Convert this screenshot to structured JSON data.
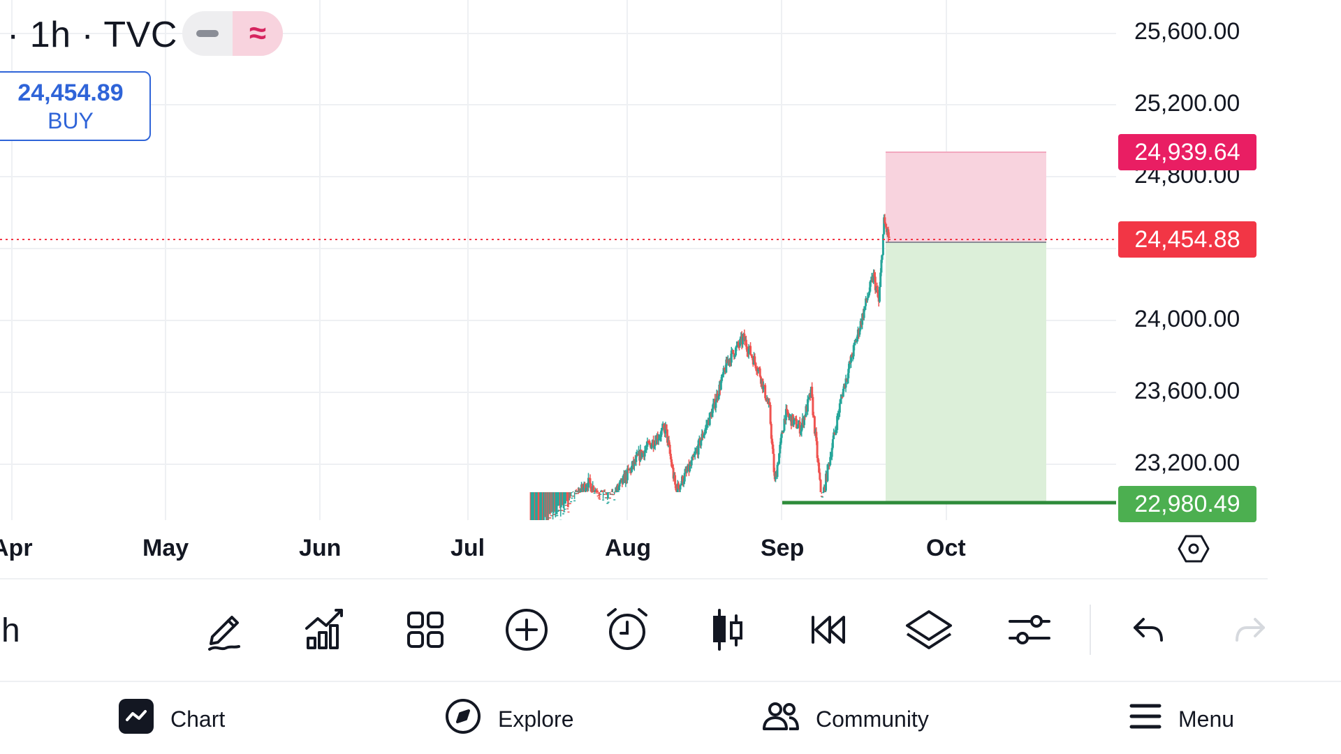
{
  "header": {
    "title": "· 1h · TVC",
    "buy_price": "24,454.89",
    "buy_label": "BUY"
  },
  "price_axis": {
    "labels": [
      "25,600.00",
      "25,200.00",
      "24,800.00",
      "24,000.00",
      "23,600.00",
      "23,200.00"
    ],
    "target_tag": "24,939.64",
    "current_tag": "24,454.88",
    "stop_tag": "22,980.49"
  },
  "time_axis": {
    "labels": [
      "Apr",
      "May",
      "Jun",
      "Jul",
      "Aug",
      "Sep",
      "Oct"
    ]
  },
  "toolbar": {
    "left_text": "h",
    "tools": [
      "pencil-icon",
      "indicators-icon",
      "grid-icon",
      "plus-circle-icon",
      "alarm-icon",
      "candles-icon",
      "replay-icon",
      "layers-icon",
      "sliders-icon",
      "undo-icon",
      "redo-icon"
    ]
  },
  "nav": {
    "chart": "Chart",
    "explore": "Explore",
    "community": "Community",
    "menu": "Menu"
  },
  "colors": {
    "up": "#26a69a",
    "down": "#ef5350",
    "target_tag": "#e91e63",
    "current_tag": "#f23645",
    "stop_tag": "#4caf50",
    "accent": "#2f64d8"
  },
  "chart_data": {
    "type": "candlestick",
    "interval": "1h",
    "x_start": "2025-07-13",
    "x_end": "2025-09-20",
    "ylim": [
      22750,
      25700
    ],
    "trajectory": [
      [
        "2025-07-13",
        22800
      ],
      [
        "2025-07-20",
        22950
      ],
      [
        "2025-07-24",
        23100
      ],
      [
        "2025-07-28",
        22980
      ],
      [
        "2025-08-03",
        23250
      ],
      [
        "2025-08-08",
        23400
      ],
      [
        "2025-08-10",
        23050
      ],
      [
        "2025-08-13",
        23200
      ],
      [
        "2025-08-17",
        23500
      ],
      [
        "2025-08-20",
        23780
      ],
      [
        "2025-08-23",
        23900
      ],
      [
        "2025-08-26",
        23720
      ],
      [
        "2025-08-28",
        23500
      ],
      [
        "2025-08-29",
        23100
      ],
      [
        "2025-08-31",
        23480
      ],
      [
        "2025-09-03",
        23400
      ],
      [
        "2025-09-05",
        23600
      ],
      [
        "2025-09-06",
        23300
      ],
      [
        "2025-09-07",
        22980
      ],
      [
        "2025-09-09",
        23300
      ],
      [
        "2025-09-11",
        23600
      ],
      [
        "2025-09-13",
        23820
      ],
      [
        "2025-09-16",
        24150
      ],
      [
        "2025-09-17",
        24250
      ],
      [
        "2025-09-18",
        24100
      ],
      [
        "2025-09-19",
        24550
      ],
      [
        "2025-09-20",
        24454.88
      ]
    ],
    "long_position": {
      "entry": 24454.88,
      "target": 24939.64,
      "stop": 22980.49,
      "start": "2025-09-23",
      "end": "2025-10-13"
    }
  }
}
